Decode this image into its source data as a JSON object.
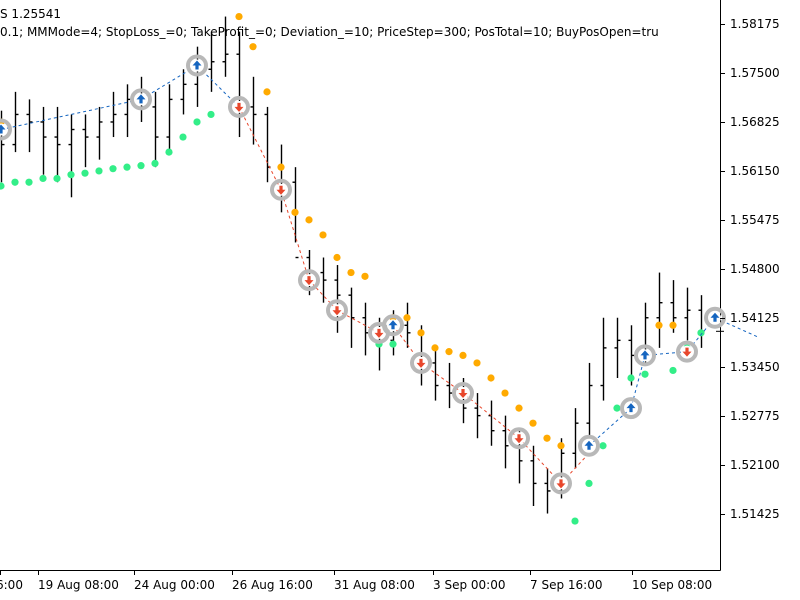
{
  "header": {
    "line1": "S 1.25541",
    "line2": "0.1; MMMode=4; StopLoss_=0; TakeProfit_=0; Deviation_=10; PriceStep=300; PosTotal=10; BuyPosOpen=tru"
  },
  "chart_data": {
    "type": "line",
    "y_ticks": [
      "1.58175",
      "1.57500",
      "1.56825",
      "1.56150",
      "1.55475",
      "1.54800",
      "1.54125",
      "1.53450",
      "1.52775",
      "1.52100",
      "1.51425"
    ],
    "x_ticks": [
      "6:00",
      "19 Aug 08:00",
      "24 Aug 00:00",
      "26 Aug 16:00",
      "31 Aug 08:00",
      "3 Sep 00:00",
      "7 Sep 16:00",
      "10 Sep 08:00"
    ],
    "ylim": [
      1.5085,
      1.5842
    ],
    "last_price": 1.5402,
    "series": [
      {
        "kind": "bars",
        "color": "#000000",
        "values": [
          [
            1.5679,
            1.5695,
            1.56,
            1.565
          ],
          [
            1.565,
            1.572,
            1.564,
            1.569
          ],
          [
            1.569,
            1.571,
            1.564,
            1.568
          ],
          [
            1.568,
            1.57,
            1.561,
            1.566
          ],
          [
            1.566,
            1.57,
            1.56,
            1.565
          ],
          [
            1.565,
            1.569,
            1.558,
            1.567
          ],
          [
            1.567,
            1.569,
            1.562,
            1.566
          ],
          [
            1.566,
            1.57,
            1.563,
            1.568
          ],
          [
            1.568,
            1.572,
            1.566,
            1.569
          ],
          [
            1.569,
            1.573,
            1.566,
            1.571
          ],
          [
            1.571,
            1.574,
            1.568,
            1.57
          ],
          [
            1.57,
            1.572,
            1.562,
            1.566
          ],
          [
            1.566,
            1.573,
            1.564,
            1.571
          ],
          [
            1.571,
            1.575,
            1.569,
            1.573
          ],
          [
            1.573,
            1.578,
            1.57,
            1.575
          ],
          [
            1.575,
            1.58,
            1.572,
            1.576
          ],
          [
            1.576,
            1.582,
            1.574,
            1.577
          ],
          [
            1.577,
            1.58,
            1.566,
            1.57
          ],
          [
            1.57,
            1.574,
            1.565,
            1.569
          ],
          [
            1.569,
            1.57,
            1.56,
            1.562
          ],
          [
            1.562,
            1.565,
            1.556,
            1.56
          ],
          [
            1.56,
            1.562,
            1.552,
            1.55
          ],
          [
            1.55,
            1.551,
            1.545,
            1.548
          ],
          [
            1.548,
            1.55,
            1.544,
            1.547
          ],
          [
            1.547,
            1.549,
            1.54,
            1.545
          ],
          [
            1.545,
            1.546,
            1.538,
            1.542
          ],
          [
            1.542,
            1.544,
            1.537,
            1.54
          ],
          [
            1.54,
            1.542,
            1.535,
            1.539
          ],
          [
            1.539,
            1.543,
            1.537,
            1.541
          ],
          [
            1.541,
            1.544,
            1.538,
            1.54
          ],
          [
            1.54,
            1.541,
            1.533,
            1.536
          ],
          [
            1.536,
            1.538,
            1.531,
            1.533
          ],
          [
            1.533,
            1.536,
            1.53,
            1.532
          ],
          [
            1.532,
            1.534,
            1.528,
            1.53
          ],
          [
            1.53,
            1.532,
            1.526,
            1.529
          ],
          [
            1.529,
            1.531,
            1.525,
            1.527
          ],
          [
            1.527,
            1.529,
            1.522,
            1.525
          ],
          [
            1.525,
            1.527,
            1.52,
            1.523
          ],
          [
            1.523,
            1.525,
            1.517,
            1.52
          ],
          [
            1.52,
            1.522,
            1.516,
            1.519
          ],
          [
            1.519,
            1.526,
            1.518,
            1.524
          ],
          [
            1.524,
            1.53,
            1.522,
            1.528
          ],
          [
            1.528,
            1.536,
            1.526,
            1.533
          ],
          [
            1.533,
            1.542,
            1.531,
            1.538
          ],
          [
            1.538,
            1.542,
            1.534,
            1.539
          ],
          [
            1.539,
            1.541,
            1.533,
            1.537
          ],
          [
            1.537,
            1.544,
            1.536,
            1.542
          ],
          [
            1.542,
            1.548,
            1.538,
            1.544
          ],
          [
            1.544,
            1.547,
            1.54,
            1.542
          ],
          [
            1.542,
            1.546,
            1.539,
            1.543
          ],
          [
            1.543,
            1.545,
            1.538,
            1.5402
          ]
        ]
      },
      {
        "kind": "dots",
        "color": "#33ee88",
        "values": [
          1.5595,
          1.56,
          1.56,
          1.5605,
          1.5605,
          1.561,
          1.5612,
          1.5615,
          1.5618,
          1.562,
          1.5622,
          1.5625,
          1.564,
          1.566,
          1.568,
          1.569,
          null,
          null,
          null,
          null,
          null,
          null,
          null,
          null,
          null,
          null,
          null,
          1.5385,
          1.5385,
          null,
          null,
          null,
          null,
          null,
          null,
          null,
          null,
          null,
          null,
          null,
          null,
          1.515,
          1.52,
          1.525,
          1.53,
          1.534,
          1.5345,
          null,
          1.535,
          1.538,
          1.54
        ]
      },
      {
        "kind": "dots",
        "color": "#ffaa00",
        "values": [
          1.568,
          null,
          null,
          null,
          null,
          null,
          null,
          null,
          null,
          null,
          null,
          null,
          null,
          null,
          null,
          null,
          null,
          1.582,
          1.578,
          1.572,
          1.562,
          1.556,
          1.555,
          1.553,
          1.55,
          1.548,
          1.5475,
          null,
          1.542,
          1.542,
          1.54,
          1.538,
          1.5375,
          1.537,
          1.536,
          1.534,
          1.532,
          1.53,
          1.528,
          1.526,
          1.525,
          null,
          null,
          null,
          null,
          null,
          null,
          1.541,
          1.541,
          null,
          null
        ]
      },
      {
        "kind": "dashed",
        "color": "#1565c0",
        "values": [
          [
            0,
            1.567
          ],
          [
            10,
            1.571
          ],
          [
            14,
            1.5755
          ],
          [
            17,
            1.57
          ]
        ]
      },
      {
        "kind": "dashed",
        "color": "#e8472c",
        "values": [
          [
            17,
            1.57
          ],
          [
            20,
            1.559
          ],
          [
            22,
            1.547
          ],
          [
            24,
            1.543
          ],
          [
            27,
            1.54
          ],
          [
            28,
            1.541
          ]
        ]
      },
      {
        "kind": "dashed",
        "color": "#e8472c",
        "values": [
          [
            28,
            1.541
          ],
          [
            30,
            1.536
          ],
          [
            33,
            1.532
          ],
          [
            37,
            1.526
          ],
          [
            40,
            1.52
          ],
          [
            42,
            1.524
          ]
        ]
      },
      {
        "kind": "dashed",
        "color": "#1565c0",
        "values": [
          [
            42,
            1.525
          ],
          [
            45,
            1.53
          ],
          [
            46,
            1.537
          ],
          [
            49,
            1.5375
          ],
          [
            51,
            1.542
          ],
          [
            54,
            1.5395
          ]
        ]
      },
      {
        "kind": "markers",
        "up_color": "#1565c0",
        "down_color": "#e8472c",
        "ring_color": "#b8b8b8",
        "values": [
          [
            0,
            1.567,
            "up"
          ],
          [
            10,
            1.571,
            "up"
          ],
          [
            14,
            1.5755,
            "up"
          ],
          [
            17,
            1.57,
            "down"
          ],
          [
            20,
            1.559,
            "down"
          ],
          [
            22,
            1.547,
            "down"
          ],
          [
            24,
            1.543,
            "down"
          ],
          [
            27,
            1.54,
            "down"
          ],
          [
            28,
            1.541,
            "up"
          ],
          [
            30,
            1.536,
            "down"
          ],
          [
            33,
            1.532,
            "down"
          ],
          [
            37,
            1.526,
            "down"
          ],
          [
            40,
            1.52,
            "down"
          ],
          [
            42,
            1.525,
            "up"
          ],
          [
            45,
            1.53,
            "up"
          ],
          [
            46,
            1.537,
            "up"
          ],
          [
            49,
            1.5375,
            "down"
          ],
          [
            51,
            1.542,
            "up"
          ]
        ]
      }
    ]
  }
}
